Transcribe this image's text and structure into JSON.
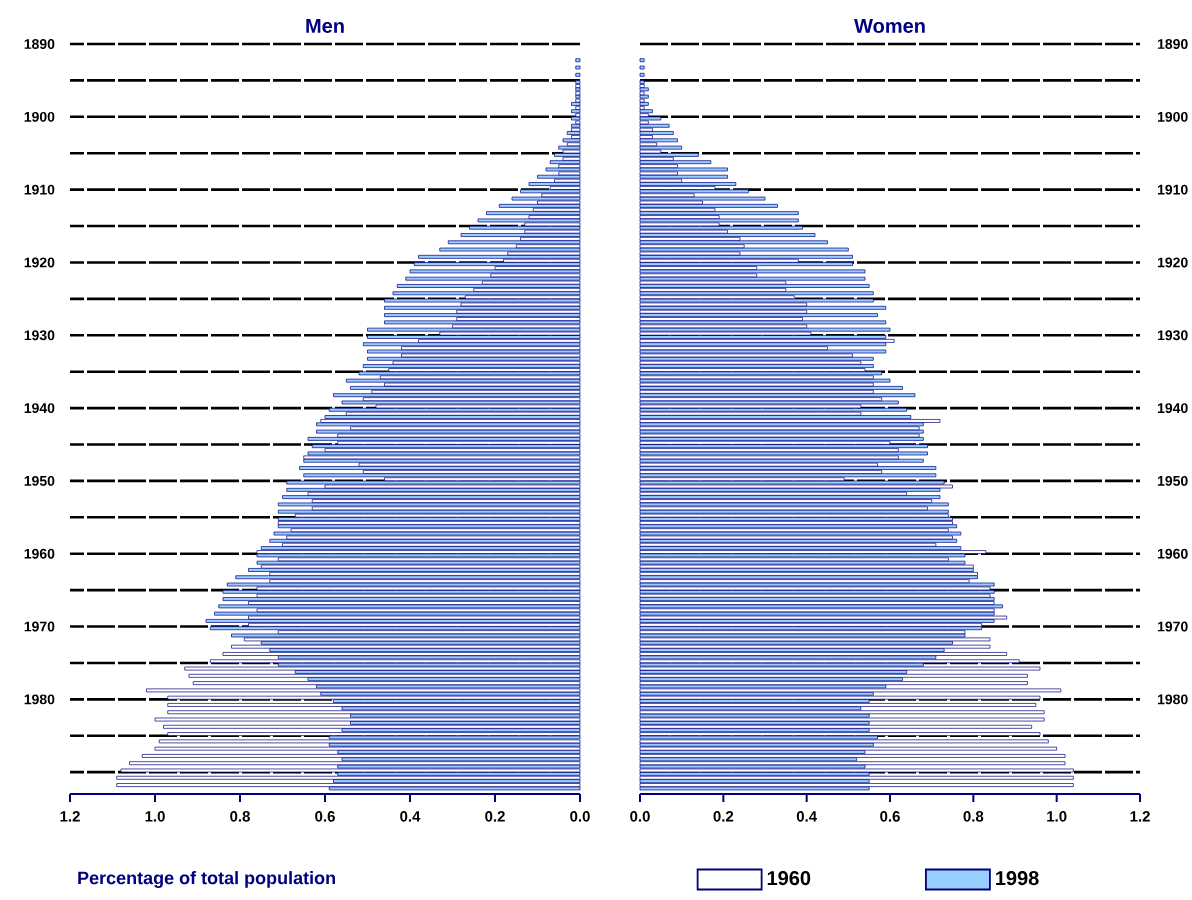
{
  "chart_data": [
    {
      "type": "bar",
      "orientation": "horizontal",
      "title": "Men",
      "annotations": [
        "Percentage of total population"
      ],
      "x": [
        1892,
        1893,
        1894,
        1895,
        1896,
        1897,
        1898,
        1899,
        1900,
        1901,
        1902,
        1903,
        1904,
        1905,
        1906,
        1907,
        1908,
        1909,
        1910,
        1911,
        1912,
        1913,
        1914,
        1915,
        1916,
        1917,
        1918,
        1919,
        1920,
        1921,
        1922,
        1923,
        1924,
        1925,
        1926,
        1927,
        1928,
        1929,
        1930,
        1931,
        1932,
        1933,
        1934,
        1935,
        1936,
        1937,
        1938,
        1939,
        1940,
        1941,
        1942,
        1943,
        1944,
        1945,
        1946,
        1947,
        1948,
        1949,
        1950,
        1951,
        1952,
        1953,
        1954,
        1955,
        1956,
        1957,
        1958,
        1959,
        1960,
        1961,
        1962,
        1963,
        1964,
        1965,
        1966,
        1967,
        1968,
        1969,
        1970,
        1971,
        1972,
        1973,
        1974,
        1975,
        1976,
        1977,
        1978,
        1979,
        1980,
        1981,
        1982,
        1983,
        1984,
        1985,
        1986,
        1987,
        1988,
        1989,
        1990,
        1991,
        1992
      ],
      "xlim": [
        1.2,
        0
      ],
      "ylim": [
        1993,
        1890
      ],
      "xticks": [
        {
          "value": 1.2,
          "label": "1.2"
        },
        {
          "value": 1,
          "label": "1.0"
        },
        {
          "value": 0.8,
          "label": "0.8"
        },
        {
          "value": 0.6,
          "label": "0.6"
        },
        {
          "value": 0.4,
          "label": "0.4"
        },
        {
          "value": 0.2,
          "label": "0.2"
        },
        {
          "value": 0,
          "label": "0.0"
        }
      ],
      "yticks": [
        1890,
        {
          "value": 1895,
          "label": null
        },
        1900,
        {
          "value": 1905,
          "label": null
        },
        1910,
        {
          "value": 1915,
          "label": null
        },
        1920,
        {
          "value": 1925,
          "label": null
        },
        1930,
        {
          "value": 1935,
          "label": null
        },
        1940,
        {
          "value": 1945,
          "label": null
        },
        1950,
        {
          "value": 1955,
          "label": null
        },
        1960,
        {
          "value": 1965,
          "label": null
        },
        1970,
        {
          "value": 1975,
          "label": null
        },
        1980,
        {
          "value": 1985,
          "label": null
        },
        {
          "value": 1990,
          "label": null
        }
      ],
      "grid": "y",
      "series": [
        {
          "color": "#ffffff",
          "values": [
            null,
            null,
            null,
            null,
            0.01,
            0.01,
            0.01,
            0.01,
            0.01,
            0.01,
            0.02,
            0.02,
            0.03,
            0.04,
            0.04,
            0.05,
            0.05,
            0.06,
            0.07,
            0.09,
            0.1,
            0.11,
            0.12,
            0.13,
            0.13,
            0.14,
            0.15,
            0.17,
            0.18,
            0.2,
            0.21,
            0.23,
            0.25,
            0.27,
            0.28,
            0.29,
            0.29,
            0.3,
            0.33,
            0.38,
            0.42,
            0.42,
            0.44,
            0.45,
            0.47,
            0.46,
            0.49,
            0.51,
            0.48,
            0.55,
            0.61,
            0.54,
            0.57,
            0.57,
            0.6,
            0.65,
            0.52,
            0.51,
            0.46,
            0.6,
            0.64,
            0.63,
            0.63,
            0.67,
            0.71,
            0.68,
            0.69,
            0.7,
            0.76,
            0.71,
            0.75,
            0.73,
            0.73,
            0.76,
            0.76,
            0.78,
            0.76,
            0.78,
            0.78,
            0.71,
            0.79,
            0.82,
            0.84,
            0.87,
            0.93,
            0.92,
            0.91,
            1.02,
            0.97,
            0.97,
            0.97,
            1.0,
            0.98,
            0.97,
            0.99,
            1.0,
            1.03,
            1.06,
            1.08,
            1.09,
            1.09
          ]
        },
        {
          "color": "#99ccff",
          "values": [
            0.01,
            0.01,
            0.01,
            0.01,
            0.01,
            0.01,
            0.02,
            0.02,
            0.02,
            0.02,
            0.03,
            0.04,
            0.05,
            0.06,
            0.07,
            0.08,
            0.1,
            0.12,
            0.14,
            0.16,
            0.19,
            0.22,
            0.24,
            0.26,
            0.28,
            0.31,
            0.33,
            0.38,
            0.39,
            0.4,
            0.41,
            0.43,
            0.44,
            0.46,
            0.46,
            0.46,
            0.46,
            0.5,
            0.5,
            0.51,
            0.5,
            0.5,
            0.51,
            0.52,
            0.55,
            0.54,
            0.58,
            0.56,
            0.59,
            0.6,
            0.62,
            0.62,
            0.64,
            0.63,
            0.64,
            0.65,
            0.66,
            0.65,
            0.69,
            0.69,
            0.7,
            0.71,
            0.71,
            0.71,
            0.71,
            0.72,
            0.73,
            0.75,
            0.76,
            0.76,
            0.78,
            0.81,
            0.83,
            0.84,
            0.84,
            0.85,
            0.86,
            0.88,
            0.87,
            0.82,
            0.75,
            0.73,
            0.71,
            0.71,
            0.67,
            0.64,
            0.62,
            0.61,
            0.58,
            0.56,
            0.54,
            0.54,
            0.56,
            0.59,
            0.59,
            0.57,
            0.56,
            0.57,
            0.57,
            0.58,
            0.59
          ]
        }
      ]
    },
    {
      "type": "bar",
      "orientation": "horizontal",
      "title": "Women",
      "legend": "bottom",
      "x": [
        1892,
        1893,
        1894,
        1895,
        1896,
        1897,
        1898,
        1899,
        1900,
        1901,
        1902,
        1903,
        1904,
        1905,
        1906,
        1907,
        1908,
        1909,
        1910,
        1911,
        1912,
        1913,
        1914,
        1915,
        1916,
        1917,
        1918,
        1919,
        1920,
        1921,
        1922,
        1923,
        1924,
        1925,
        1926,
        1927,
        1928,
        1929,
        1930,
        1931,
        1932,
        1933,
        1934,
        1935,
        1936,
        1937,
        1938,
        1939,
        1940,
        1941,
        1942,
        1943,
        1944,
        1945,
        1946,
        1947,
        1948,
        1949,
        1950,
        1951,
        1952,
        1953,
        1954,
        1955,
        1956,
        1957,
        1958,
        1959,
        1960,
        1961,
        1962,
        1963,
        1964,
        1965,
        1966,
        1967,
        1968,
        1969,
        1970,
        1971,
        1972,
        1973,
        1974,
        1975,
        1976,
        1977,
        1978,
        1979,
        1980,
        1981,
        1982,
        1983,
        1984,
        1985,
        1986,
        1987,
        1988,
        1989,
        1990,
        1991,
        1992
      ],
      "xlim": [
        0,
        1.2
      ],
      "ylim": [
        1993,
        1890
      ],
      "xticks": [
        {
          "value": 0,
          "label": "0.0"
        },
        {
          "value": 0.2,
          "label": "0.2"
        },
        {
          "value": 0.4,
          "label": "0.4"
        },
        {
          "value": 0.6,
          "label": "0.6"
        },
        {
          "value": 0.8,
          "label": "0.8"
        },
        {
          "value": 1,
          "label": "1.0"
        },
        {
          "value": 1.2,
          "label": "1.2"
        }
      ],
      "yticks": [
        1890,
        {
          "value": 1895,
          "label": null
        },
        1900,
        {
          "value": 1905,
          "label": null
        },
        1910,
        {
          "value": 1915,
          "label": null
        },
        1920,
        {
          "value": 1925,
          "label": null
        },
        1930,
        {
          "value": 1935,
          "label": null
        },
        1940,
        {
          "value": 1945,
          "label": null
        },
        1950,
        {
          "value": 1955,
          "label": null
        },
        1960,
        {
          "value": 1965,
          "label": null
        },
        1970,
        {
          "value": 1975,
          "label": null
        },
        1980,
        {
          "value": 1985,
          "label": null
        },
        {
          "value": 1990,
          "label": null
        }
      ],
      "grid": "y",
      "series": [
        {
          "name": "1960",
          "color": "#ffffff",
          "values": [
            null,
            null,
            null,
            null,
            0.01,
            0.01,
            0.01,
            0.01,
            0.02,
            0.02,
            0.03,
            0.03,
            0.04,
            0.05,
            0.08,
            0.09,
            0.09,
            0.1,
            0.18,
            0.13,
            0.15,
            0.18,
            0.19,
            0.19,
            0.21,
            0.24,
            0.25,
            0.24,
            0.38,
            0.28,
            0.28,
            0.35,
            0.35,
            0.37,
            0.4,
            0.4,
            0.39,
            0.4,
            0.41,
            0.61,
            0.45,
            0.51,
            0.53,
            0.54,
            0.56,
            0.56,
            0.56,
            0.58,
            0.53,
            0.53,
            0.72,
            0.67,
            0.67,
            0.6,
            0.62,
            0.62,
            0.57,
            0.58,
            0.49,
            0.75,
            0.64,
            0.7,
            0.69,
            0.74,
            0.75,
            0.74,
            0.75,
            0.71,
            0.83,
            0.74,
            0.8,
            0.81,
            0.79,
            0.84,
            0.84,
            0.85,
            0.85,
            0.88,
            0.82,
            0.78,
            0.84,
            0.84,
            0.88,
            0.91,
            0.96,
            0.93,
            0.93,
            1.01,
            0.96,
            0.95,
            0.97,
            0.97,
            0.94,
            0.96,
            0.98,
            1.0,
            1.02,
            1.02,
            1.04,
            1.04,
            1.04
          ]
        },
        {
          "name": "1998",
          "color": "#99ccff",
          "values": [
            0.01,
            0.01,
            0.01,
            0.01,
            0.02,
            0.02,
            0.02,
            0.03,
            0.05,
            0.07,
            0.08,
            0.09,
            0.1,
            0.14,
            0.17,
            0.21,
            0.21,
            0.23,
            0.26,
            0.3,
            0.33,
            0.38,
            0.38,
            0.39,
            0.42,
            0.45,
            0.5,
            0.51,
            0.51,
            0.54,
            0.54,
            0.55,
            0.56,
            0.56,
            0.59,
            0.57,
            0.59,
            0.6,
            0.59,
            0.59,
            0.59,
            0.56,
            0.56,
            0.58,
            0.6,
            0.63,
            0.66,
            0.62,
            0.64,
            0.65,
            0.68,
            0.68,
            0.68,
            0.69,
            0.69,
            0.68,
            0.71,
            0.71,
            0.73,
            0.72,
            0.72,
            0.74,
            0.74,
            0.75,
            0.76,
            0.77,
            0.76,
            0.77,
            0.78,
            0.78,
            0.8,
            0.81,
            0.85,
            0.85,
            0.85,
            0.87,
            0.85,
            0.85,
            0.82,
            0.78,
            0.75,
            0.73,
            0.71,
            0.68,
            0.64,
            0.63,
            0.59,
            0.56,
            0.55,
            0.53,
            0.55,
            0.55,
            0.55,
            0.57,
            0.56,
            0.54,
            0.52,
            0.54,
            0.55,
            0.55,
            0.55
          ]
        }
      ]
    }
  ]
}
